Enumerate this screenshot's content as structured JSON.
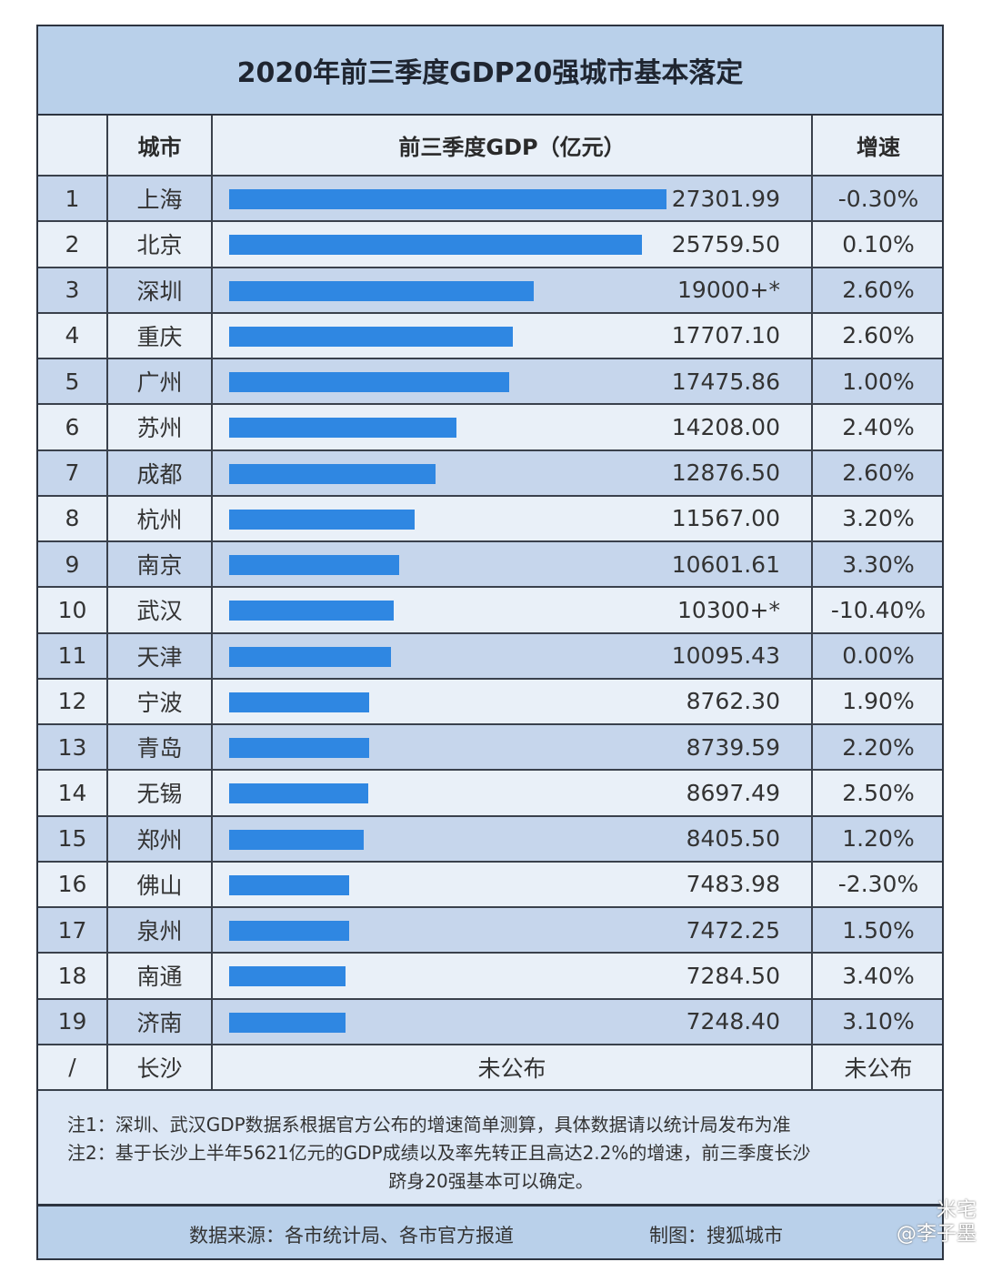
{
  "title": "2020年前三季度GDP20强城市基本落定",
  "header": {
    "rank": "",
    "city": "城市",
    "gdp": "前三季度GDP（亿元）",
    "growth": "增速"
  },
  "colors": {
    "bar": "#2f87e2",
    "row_odd": "#c6d6ec",
    "row_even": "#e9f0f8",
    "title_bg": "#b9d0ea"
  },
  "chart_data": {
    "type": "bar",
    "orientation": "horizontal",
    "title": "2020年前三季度GDP20强城市基本落定",
    "xlabel": "前三季度GDP（亿元）",
    "ylabel": "城市",
    "xlim": [
      0,
      27301.99
    ],
    "rows": [
      {
        "rank": "1",
        "city": "上海",
        "gdp": 27301.99,
        "gdp_label": "27301.99",
        "growth": "-0.30%"
      },
      {
        "rank": "2",
        "city": "北京",
        "gdp": 25759.5,
        "gdp_label": "25759.50",
        "growth": "0.10%"
      },
      {
        "rank": "3",
        "city": "深圳",
        "gdp": 19000,
        "gdp_label": "19000+*",
        "growth": "2.60%"
      },
      {
        "rank": "4",
        "city": "重庆",
        "gdp": 17707.1,
        "gdp_label": "17707.10",
        "growth": "2.60%"
      },
      {
        "rank": "5",
        "city": "广州",
        "gdp": 17475.86,
        "gdp_label": "17475.86",
        "growth": "1.00%"
      },
      {
        "rank": "6",
        "city": "苏州",
        "gdp": 14208.0,
        "gdp_label": "14208.00",
        "growth": "2.40%"
      },
      {
        "rank": "7",
        "city": "成都",
        "gdp": 12876.5,
        "gdp_label": "12876.50",
        "growth": "2.60%"
      },
      {
        "rank": "8",
        "city": "杭州",
        "gdp": 11567.0,
        "gdp_label": "11567.00",
        "growth": "3.20%"
      },
      {
        "rank": "9",
        "city": "南京",
        "gdp": 10601.61,
        "gdp_label": "10601.61",
        "growth": "3.30%"
      },
      {
        "rank": "10",
        "city": "武汉",
        "gdp": 10300,
        "gdp_label": "10300+*",
        "growth": "-10.40%"
      },
      {
        "rank": "11",
        "city": "天津",
        "gdp": 10095.43,
        "gdp_label": "10095.43",
        "growth": "0.00%"
      },
      {
        "rank": "12",
        "city": "宁波",
        "gdp": 8762.3,
        "gdp_label": "8762.30",
        "growth": "1.90%"
      },
      {
        "rank": "13",
        "city": "青岛",
        "gdp": 8739.59,
        "gdp_label": "8739.59",
        "growth": "2.20%"
      },
      {
        "rank": "14",
        "city": "无锡",
        "gdp": 8697.49,
        "gdp_label": "8697.49",
        "growth": "2.50%"
      },
      {
        "rank": "15",
        "city": "郑州",
        "gdp": 8405.5,
        "gdp_label": "8405.50",
        "growth": "1.20%"
      },
      {
        "rank": "16",
        "city": "佛山",
        "gdp": 7483.98,
        "gdp_label": "7483.98",
        "growth": "-2.30%"
      },
      {
        "rank": "17",
        "city": "泉州",
        "gdp": 7472.25,
        "gdp_label": "7472.25",
        "growth": "1.50%"
      },
      {
        "rank": "18",
        "city": "南通",
        "gdp": 7284.5,
        "gdp_label": "7284.50",
        "growth": "3.40%"
      },
      {
        "rank": "19",
        "city": "济南",
        "gdp": 7248.4,
        "gdp_label": "7248.40",
        "growth": "3.10%"
      },
      {
        "rank": "/",
        "city": "长沙",
        "gdp": null,
        "gdp_label": "未公布",
        "growth": "未公布"
      }
    ]
  },
  "notes": {
    "note1": "注1：深圳、武汉GDP数据系根据官方公布的增速简单测算，具体数据请以统计局发布为准",
    "note2": "注2：基于长沙上半年5621亿元的GDP成绩以及率先转正且高达2.2%的增速，前三季度长沙",
    "note2_cont": "跻身20强基本可以确定。"
  },
  "footer": {
    "source": "数据来源：各市统计局、各市官方报道",
    "maker": "制图：搜狐城市"
  },
  "watermark": {
    "line1": "米宅",
    "line2": "@李子墨"
  }
}
